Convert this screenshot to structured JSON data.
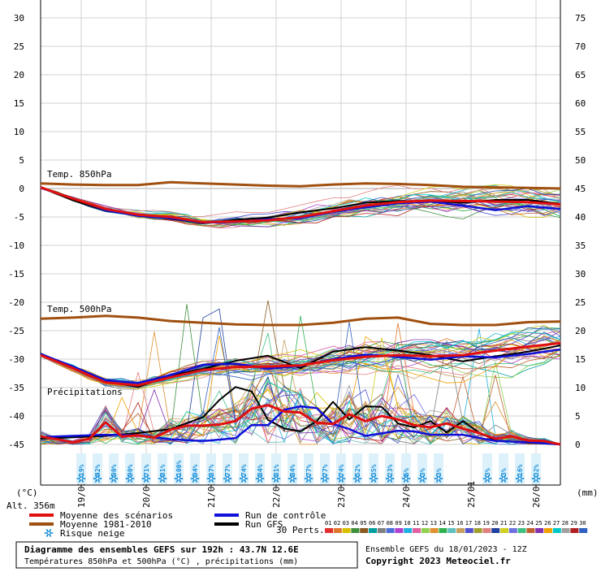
{
  "chart_data": {
    "type": "line",
    "left_axis": {
      "unit_label": "(°C)",
      "range": [
        -45,
        30
      ],
      "ticks": [
        "30",
        "25",
        "20",
        "15",
        "10",
        "5",
        "0",
        "-5",
        "-10",
        "-15",
        "-20",
        "-25",
        "-30",
        "-35",
        "-40",
        "-45"
      ]
    },
    "right_axis": {
      "unit_label": "(mm)",
      "range": [
        0,
        75
      ],
      "ticks": [
        "75",
        "70",
        "65",
        "60",
        "55",
        "50",
        "45",
        "40",
        "35",
        "30",
        "25",
        "20",
        "15",
        "10",
        "5",
        "0"
      ]
    },
    "x_range_hours": [
      0,
      192
    ],
    "x_ticks": [
      {
        "label": "19/01",
        "h": 15
      },
      {
        "label": "20/01",
        "h": 39
      },
      {
        "label": "21/01",
        "h": 63
      },
      {
        "label": "22/01",
        "h": 87
      },
      {
        "label": "23/01",
        "h": 111
      },
      {
        "label": "24/01",
        "h": 135
      },
      {
        "label": "25/01",
        "h": 159
      },
      {
        "label": "26/01",
        "h": 183
      }
    ],
    "panel_labels": {
      "t850": "Temp. 850hPa",
      "t500": "Temp. 500hPa",
      "precip": "Précipitations"
    },
    "altitude": "Alt. 356m",
    "climatology_850": [
      [
        0,
        0.9
      ],
      [
        12,
        0.7
      ],
      [
        24,
        0.6
      ],
      [
        36,
        0.6
      ],
      [
        48,
        1.1
      ],
      [
        60,
        0.9
      ],
      [
        72,
        0.7
      ],
      [
        84,
        0.5
      ],
      [
        96,
        0.4
      ],
      [
        108,
        0.7
      ],
      [
        120,
        0.9
      ],
      [
        132,
        0.8
      ],
      [
        144,
        0.6
      ],
      [
        156,
        0.3
      ],
      [
        168,
        0.2
      ],
      [
        180,
        0.1
      ],
      [
        192,
        0.0
      ]
    ],
    "climatology_500": [
      [
        0,
        -22.9
      ],
      [
        12,
        -22.7
      ],
      [
        24,
        -22.4
      ],
      [
        36,
        -22.7
      ],
      [
        48,
        -23.3
      ],
      [
        60,
        -23.6
      ],
      [
        72,
        -23.9
      ],
      [
        84,
        -24.0
      ],
      [
        96,
        -24.0
      ],
      [
        108,
        -23.6
      ],
      [
        120,
        -22.9
      ],
      [
        132,
        -22.7
      ],
      [
        144,
        -23.8
      ],
      [
        156,
        -24.0
      ],
      [
        168,
        -24.0
      ],
      [
        180,
        -23.5
      ],
      [
        192,
        -23.4
      ]
    ],
    "mean_850": [
      [
        0,
        0.2
      ],
      [
        12,
        -1.8
      ],
      [
        24,
        -3.6
      ],
      [
        36,
        -4.6
      ],
      [
        48,
        -5.0
      ],
      [
        60,
        -5.9
      ],
      [
        72,
        -5.8
      ],
      [
        84,
        -5.6
      ],
      [
        96,
        -5.0
      ],
      [
        108,
        -4.0
      ],
      [
        120,
        -3.0
      ],
      [
        132,
        -2.4
      ],
      [
        144,
        -2.1
      ],
      [
        156,
        -2.2
      ],
      [
        168,
        -2.3
      ],
      [
        180,
        -2.4
      ],
      [
        192,
        -2.8
      ]
    ],
    "control_850": [
      [
        0,
        0.1
      ],
      [
        12,
        -1.7
      ],
      [
        24,
        -3.8
      ],
      [
        36,
        -4.8
      ],
      [
        48,
        -5.2
      ],
      [
        60,
        -6.0
      ],
      [
        72,
        -5.9
      ],
      [
        84,
        -5.4
      ],
      [
        96,
        -5.2
      ],
      [
        108,
        -4.1
      ],
      [
        120,
        -3.3
      ],
      [
        132,
        -2.6
      ],
      [
        144,
        -2.3
      ],
      [
        156,
        -3.0
      ],
      [
        168,
        -3.8
      ],
      [
        180,
        -3.1
      ],
      [
        192,
        -3.6
      ]
    ],
    "gfs_850": [
      [
        0,
        0.2
      ],
      [
        12,
        -2.1
      ],
      [
        24,
        -3.9
      ],
      [
        36,
        -4.7
      ],
      [
        48,
        -5.3
      ],
      [
        60,
        -6.1
      ],
      [
        72,
        -5.5
      ],
      [
        84,
        -5.1
      ],
      [
        96,
        -4.2
      ],
      [
        108,
        -3.5
      ],
      [
        120,
        -2.5
      ],
      [
        132,
        -2.2
      ],
      [
        144,
        -2.2
      ],
      [
        156,
        -2.5
      ],
      [
        168,
        -2.0
      ],
      [
        180,
        -2.0
      ],
      [
        192,
        -2.7
      ]
    ],
    "mean_500": [
      [
        0,
        -29.3
      ],
      [
        12,
        -31.6
      ],
      [
        24,
        -34.1
      ],
      [
        36,
        -34.6
      ],
      [
        48,
        -33.2
      ],
      [
        60,
        -31.9
      ],
      [
        72,
        -31.4
      ],
      [
        84,
        -31.3
      ],
      [
        96,
        -31.1
      ],
      [
        108,
        -30.2
      ],
      [
        120,
        -29.6
      ],
      [
        132,
        -29.3
      ],
      [
        144,
        -29.5
      ],
      [
        156,
        -29.3
      ],
      [
        168,
        -28.5
      ],
      [
        180,
        -27.8
      ],
      [
        192,
        -27.2
      ]
    ],
    "control_500": [
      [
        0,
        -29.1
      ],
      [
        12,
        -31.3
      ],
      [
        24,
        -33.7
      ],
      [
        36,
        -34.2
      ],
      [
        48,
        -32.8
      ],
      [
        60,
        -31.0
      ],
      [
        72,
        -30.8
      ],
      [
        84,
        -31.7
      ],
      [
        96,
        -31.2
      ],
      [
        108,
        -30.0
      ],
      [
        120,
        -29.2
      ],
      [
        132,
        -29.6
      ],
      [
        144,
        -30.1
      ],
      [
        156,
        -29.5
      ],
      [
        168,
        -29.7
      ],
      [
        180,
        -29.1
      ],
      [
        192,
        -28.3
      ]
    ],
    "gfs_500": [
      [
        0,
        -29.0
      ],
      [
        12,
        -31.5
      ],
      [
        24,
        -33.9
      ],
      [
        36,
        -34.9
      ],
      [
        48,
        -32.9
      ],
      [
        60,
        -31.7
      ],
      [
        72,
        -30.3
      ],
      [
        84,
        -29.4
      ],
      [
        96,
        -31.6
      ],
      [
        108,
        -28.7
      ],
      [
        120,
        -27.9
      ],
      [
        132,
        -28.5
      ],
      [
        144,
        -29.3
      ],
      [
        156,
        -30.4
      ],
      [
        168,
        -29.5
      ],
      [
        180,
        -28.7
      ],
      [
        192,
        -27.6
      ]
    ],
    "mean_precip": [
      [
        0,
        1.4
      ],
      [
        12,
        0.4
      ],
      [
        18,
        1.0
      ],
      [
        24,
        3.9
      ],
      [
        30,
        1.4
      ],
      [
        36,
        1.6
      ],
      [
        42,
        1.2
      ],
      [
        48,
        2.6
      ],
      [
        54,
        3.3
      ],
      [
        60,
        3.3
      ],
      [
        66,
        3.5
      ],
      [
        72,
        4.1
      ],
      [
        78,
        6.3
      ],
      [
        84,
        6.9
      ],
      [
        90,
        5.8
      ],
      [
        96,
        5.6
      ],
      [
        102,
        3.8
      ],
      [
        108,
        3.6
      ],
      [
        114,
        5.3
      ],
      [
        120,
        4.1
      ],
      [
        126,
        5.0
      ],
      [
        132,
        4.4
      ],
      [
        138,
        3.4
      ],
      [
        144,
        3.0
      ],
      [
        150,
        3.7
      ],
      [
        156,
        2.8
      ],
      [
        162,
        2.0
      ],
      [
        168,
        1.0
      ],
      [
        174,
        1.4
      ],
      [
        180,
        0.7
      ],
      [
        186,
        0.6
      ],
      [
        192,
        0.0
      ]
    ],
    "control_precip": [
      [
        0,
        1.3
      ],
      [
        24,
        1.7
      ],
      [
        36,
        1.6
      ],
      [
        48,
        0.9
      ],
      [
        60,
        0.6
      ],
      [
        72,
        1.1
      ],
      [
        78,
        3.4
      ],
      [
        84,
        3.4
      ],
      [
        90,
        6.1
      ],
      [
        96,
        6.7
      ],
      [
        102,
        6.4
      ],
      [
        108,
        3.6
      ],
      [
        114,
        2.7
      ],
      [
        120,
        1.5
      ],
      [
        132,
        2.4
      ],
      [
        138,
        2.3
      ],
      [
        144,
        1.7
      ],
      [
        156,
        1.7
      ],
      [
        168,
        0.6
      ],
      [
        180,
        0.4
      ],
      [
        192,
        0.0
      ]
    ],
    "gfs_precip": [
      [
        0,
        1.0
      ],
      [
        24,
        1.5
      ],
      [
        36,
        2.0
      ],
      [
        48,
        2.7
      ],
      [
        60,
        4.8
      ],
      [
        66,
        7.8
      ],
      [
        72,
        10.1
      ],
      [
        78,
        9.3
      ],
      [
        84,
        4.3
      ],
      [
        90,
        2.8
      ],
      [
        96,
        2.3
      ],
      [
        102,
        4.1
      ],
      [
        108,
        7.5
      ],
      [
        114,
        4.4
      ],
      [
        120,
        6.7
      ],
      [
        126,
        6.6
      ],
      [
        132,
        3.7
      ],
      [
        138,
        3.0
      ],
      [
        144,
        4.1
      ],
      [
        150,
        2.1
      ],
      [
        156,
        4.1
      ],
      [
        162,
        2.1
      ],
      [
        168,
        0.7
      ],
      [
        180,
        0.3
      ],
      [
        192,
        0.0
      ]
    ],
    "member_colors": [
      "#e03030",
      "#e07830",
      "#d8c000",
      "#3d8f3d",
      "#8a5a20",
      "#00a0a0",
      "#808080",
      "#4a6ed8",
      "#b040d0",
      "#20b0e0",
      "#e060a0",
      "#90d050",
      "#e09030",
      "#30b050",
      "#60c0c0",
      "#c8a060",
      "#5050d0",
      "#a0a030",
      "#e08080",
      "#2040a0",
      "#d0d020",
      "#7070e0",
      "#40c080",
      "#c06030",
      "#8030b0",
      "#f0a000",
      "#00c8c8",
      "#a0a0a0",
      "#b02020",
      "#3060c0"
    ],
    "snow_risk": [
      {
        "h": 15,
        "pct": "19%"
      },
      {
        "h": 21,
        "pct": "42%"
      },
      {
        "h": 27,
        "pct": "90%"
      },
      {
        "h": 33,
        "pct": "90%"
      },
      {
        "h": 39,
        "pct": "71%"
      },
      {
        "h": 45,
        "pct": "81%"
      },
      {
        "h": 51,
        "pct": "100%"
      },
      {
        "h": 57,
        "pct": "94%"
      },
      {
        "h": 63,
        "pct": "87%"
      },
      {
        "h": 69,
        "pct": "77%"
      },
      {
        "h": 75,
        "pct": "74%"
      },
      {
        "h": 81,
        "pct": "84%"
      },
      {
        "h": 87,
        "pct": "81%"
      },
      {
        "h": 93,
        "pct": "84%"
      },
      {
        "h": 99,
        "pct": "77%"
      },
      {
        "h": 105,
        "pct": "77%"
      },
      {
        "h": 111,
        "pct": "74%"
      },
      {
        "h": 117,
        "pct": "52%"
      },
      {
        "h": 123,
        "pct": "35%"
      },
      {
        "h": 129,
        "pct": "23%"
      },
      {
        "h": 135,
        "pct": "6%"
      },
      {
        "h": 141,
        "pct": "3%"
      },
      {
        "h": 147,
        "pct": "3%"
      },
      {
        "h": 165,
        "pct": "3%"
      },
      {
        "h": 171,
        "pct": "3%"
      },
      {
        "h": 177,
        "pct": "16%"
      },
      {
        "h": 183,
        "pct": "32%"
      }
    ],
    "legend": [
      {
        "label": "Moyenne des scénarios",
        "color": "#e01010",
        "kind": "line"
      },
      {
        "label": "Run de contrôle",
        "color": "#1010d8",
        "kind": "line"
      },
      {
        "label": "Moyenne 1981-2010",
        "color": "#a05010",
        "kind": "line"
      },
      {
        "label": "Run GFS",
        "color": "#000000",
        "kind": "line"
      },
      {
        "label": "Risque neige",
        "color": "#1a8fd8",
        "kind": "snow"
      }
    ],
    "perts_label": "30 Perts.",
    "perts_numbers": [
      "01",
      "02",
      "03",
      "04",
      "05",
      "06",
      "07",
      "08",
      "09",
      "10",
      "11",
      "12",
      "13",
      "14",
      "15",
      "16",
      "17",
      "18",
      "19",
      "20",
      "21",
      "22",
      "23",
      "24",
      "25",
      "26",
      "27",
      "28",
      "29",
      "30"
    ]
  },
  "footer": {
    "title": "Diagramme des ensembles GEFS sur 192h : 43.7N 12.6E",
    "subtitle": "Températures 850hPa et 500hPa (°C) , précipitations (mm)",
    "run": "Ensemble GEFS du 18/01/2023 - 12Z",
    "copyright": "Copyright 2023 Meteociel.fr"
  }
}
